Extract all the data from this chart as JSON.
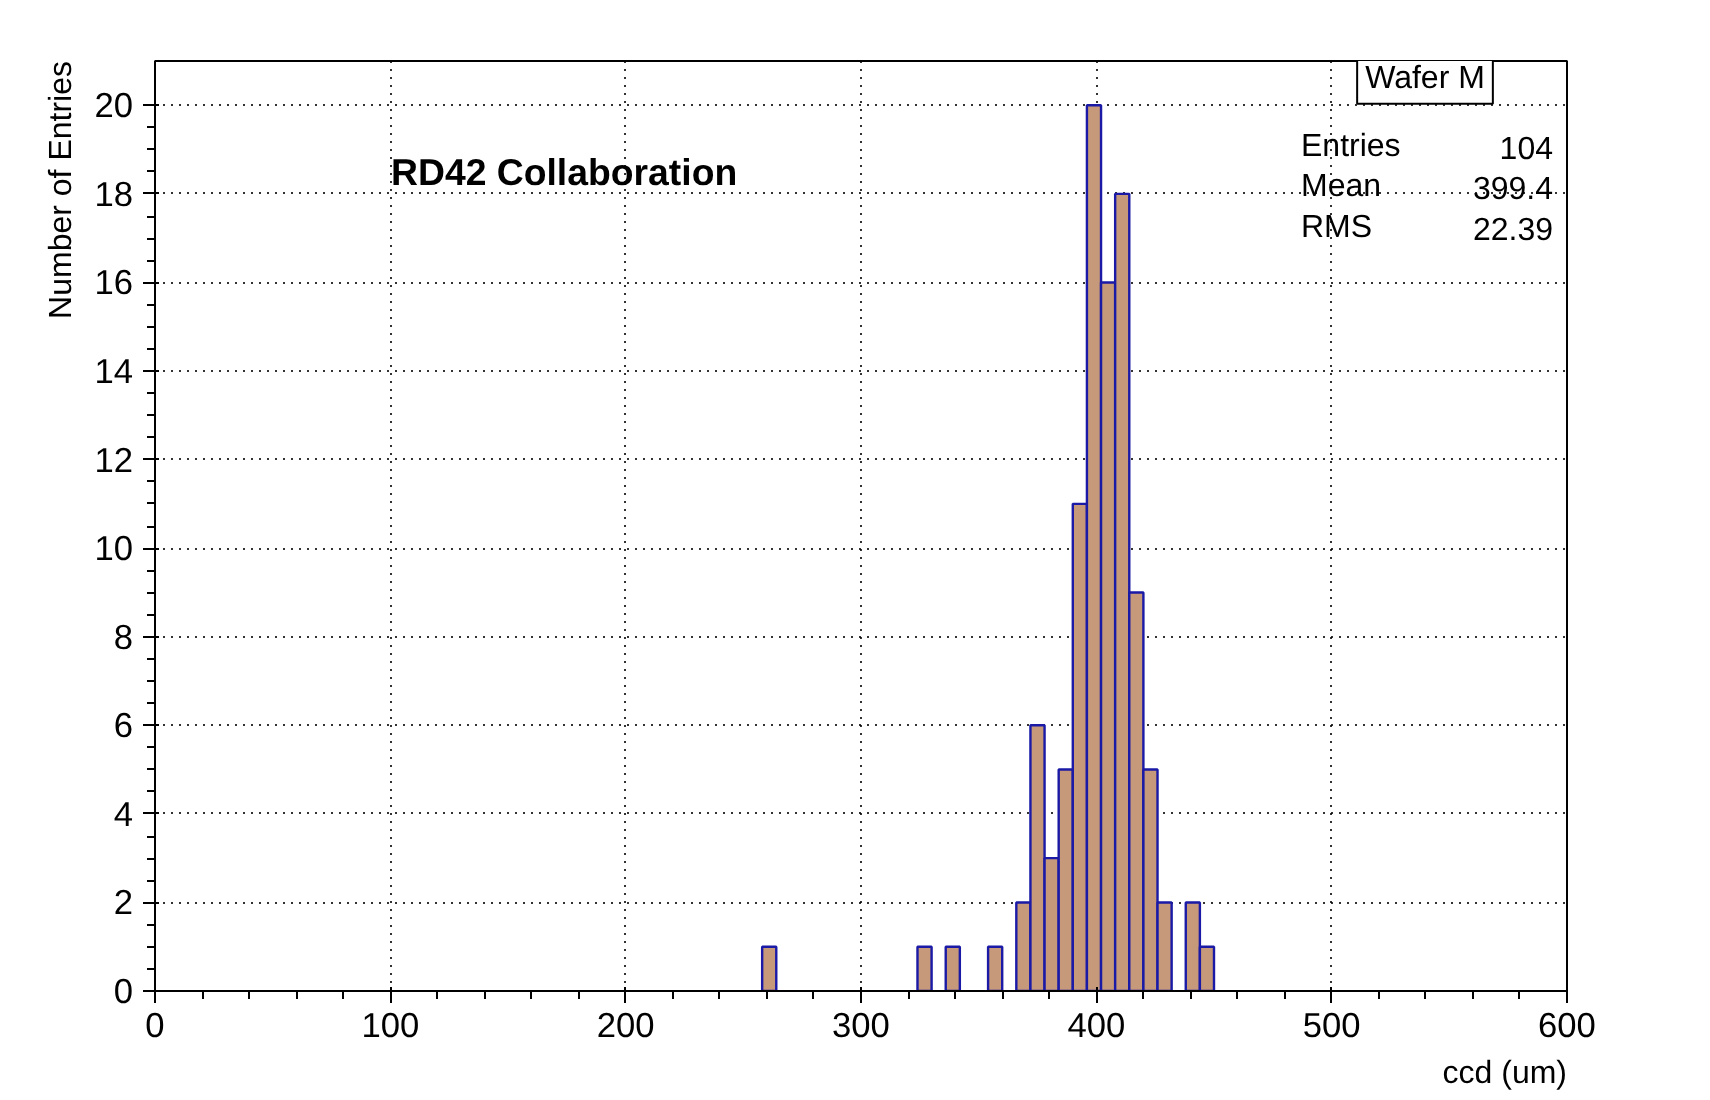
{
  "chart_data": {
    "type": "histogram",
    "xlabel": "ccd (um)",
    "ylabel": "Number of Entries",
    "bins": [
      0,
      6,
      12,
      18,
      24,
      30,
      36,
      42,
      48,
      54,
      60,
      66,
      72,
      78,
      84,
      90,
      96,
      102,
      108,
      114,
      120,
      126,
      132,
      138,
      144,
      150,
      156,
      162,
      168,
      174,
      180,
      186,
      192,
      198,
      204,
      210,
      216,
      222,
      228,
      234,
      240,
      246,
      252,
      258,
      264,
      270,
      276,
      282,
      288,
      294,
      300,
      306,
      312,
      318,
      324,
      330,
      336,
      342,
      348,
      354,
      360,
      366,
      372,
      378,
      384,
      390,
      396,
      402,
      408,
      414,
      420,
      426,
      432,
      438,
      444,
      450,
      456,
      462,
      468,
      474,
      480,
      486,
      492,
      498,
      504,
      510,
      516,
      522,
      528,
      534,
      540,
      546,
      552,
      558,
      564,
      570,
      576,
      582,
      588,
      594,
      600
    ],
    "values": [
      0,
      0,
      0,
      0,
      0,
      0,
      0,
      0,
      0,
      0,
      0,
      0,
      0,
      0,
      0,
      0,
      0,
      0,
      0,
      0,
      0,
      0,
      0,
      0,
      0,
      0,
      0,
      0,
      0,
      0,
      0,
      0,
      0,
      0,
      0,
      0,
      0,
      0,
      0,
      0,
      0,
      0,
      0,
      1,
      0,
      0,
      0,
      0,
      0,
      0,
      0,
      0,
      0,
      0,
      1,
      0,
      1,
      0,
      0,
      1,
      0,
      2,
      6,
      3,
      5,
      11,
      20,
      16,
      18,
      9,
      5,
      2,
      0,
      2,
      1,
      0,
      0,
      0,
      0,
      0,
      0,
      0,
      0,
      0,
      0,
      0,
      0,
      0,
      0,
      0,
      0,
      0,
      0,
      0,
      0,
      0,
      0,
      0,
      0,
      0
    ],
    "color": "#c6997a",
    "xlim": [
      0,
      600
    ],
    "ylim": [
      0,
      21
    ],
    "xticks": [
      0,
      100,
      200,
      300,
      400,
      500,
      600
    ],
    "yticks": [
      0,
      2,
      4,
      6,
      8,
      10,
      12,
      14,
      16,
      18,
      20
    ],
    "grid": true,
    "annotations": [
      "RD42 Collaboration",
      "Wafer M",
      "Entries",
      "104",
      "Mean",
      "399.4",
      "RMS",
      "22.39"
    ]
  }
}
